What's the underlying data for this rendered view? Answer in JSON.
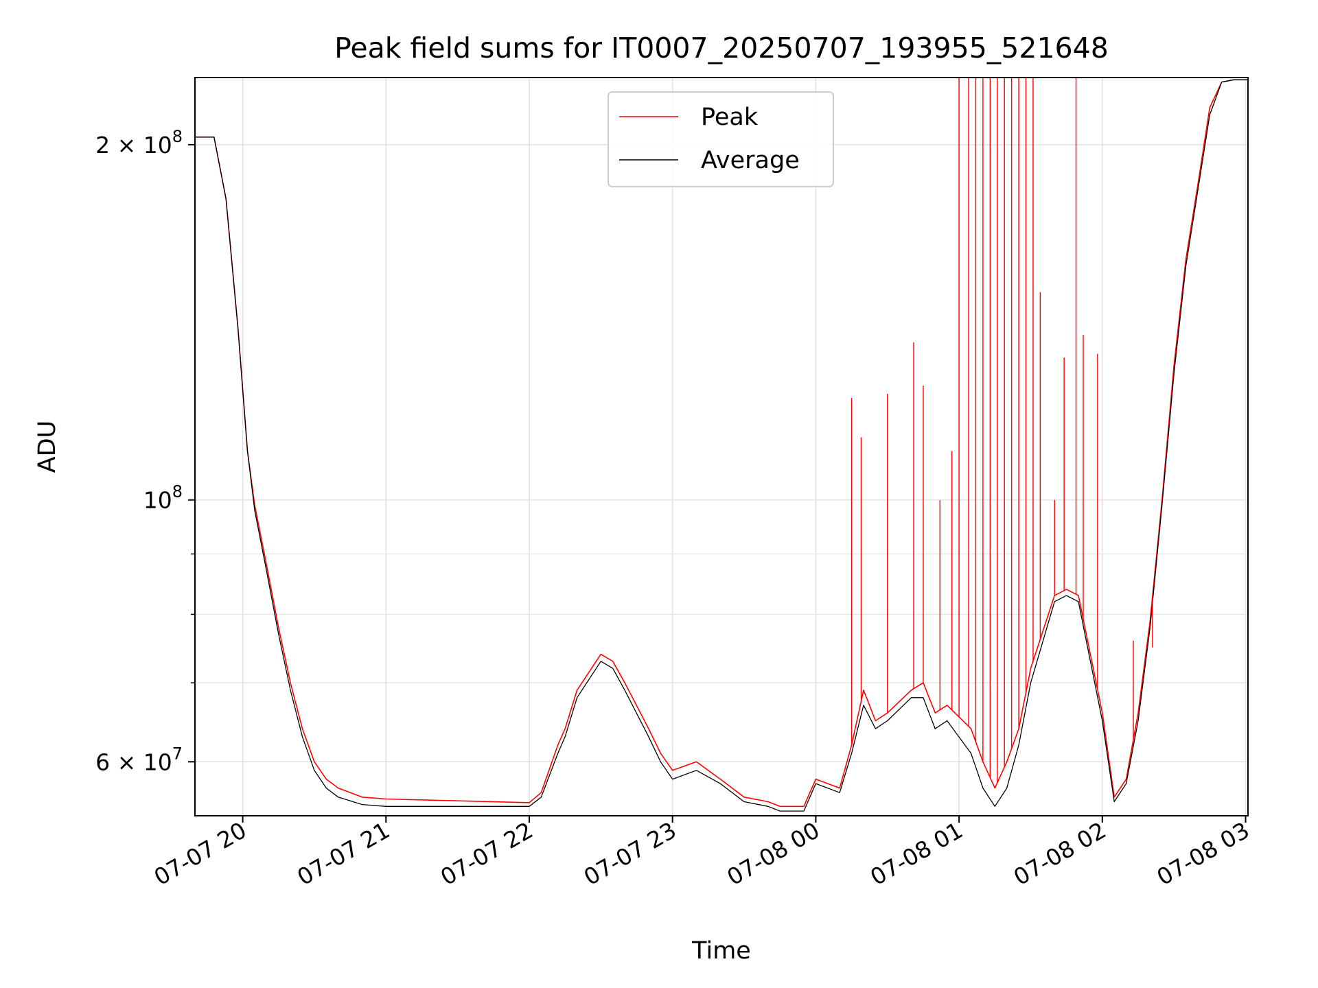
{
  "chart_data": {
    "type": "line",
    "title": "Peak field sums for IT0007_20250707_193955_521648",
    "xlabel": "Time",
    "ylabel": "ADU",
    "y_scale": "log",
    "grid": true,
    "legend_position": "top-center",
    "xlim": [
      "2025-07-07 19:40",
      "2025-07-08 03:01"
    ],
    "ylim": [
      54000000,
      228000000
    ],
    "x_ticks": [
      "07-07 20",
      "07-07 21",
      "07-07 22",
      "07-07 23",
      "07-08 00",
      "07-08 01",
      "07-08 02",
      "07-08 03"
    ],
    "y_ticks": [
      {
        "value": 200000000,
        "mantissa": "2",
        "exponent": "8"
      },
      {
        "value": 100000000,
        "mantissa": "",
        "exponent": "8"
      },
      {
        "value": 60000000,
        "mantissa": "6",
        "exponent": "7"
      }
    ],
    "y_minor_ticks": [
      70000000,
      80000000,
      90000000
    ],
    "series": [
      {
        "name": "Peak",
        "color": "#ff0000",
        "x": [
          "2025-07-07 19:40",
          "2025-07-07 19:48",
          "2025-07-07 19:53",
          "2025-07-07 19:58",
          "2025-07-07 20:02",
          "2025-07-07 20:05",
          "2025-07-07 20:10",
          "2025-07-07 20:15",
          "2025-07-07 20:20",
          "2025-07-07 20:25",
          "2025-07-07 20:30",
          "2025-07-07 20:35",
          "2025-07-07 20:40",
          "2025-07-07 20:50",
          "2025-07-07 21:00",
          "2025-07-07 21:30",
          "2025-07-07 22:00",
          "2025-07-07 22:05",
          "2025-07-07 22:12",
          "2025-07-07 22:15",
          "2025-07-07 22:20",
          "2025-07-07 22:30",
          "2025-07-07 22:35",
          "2025-07-07 22:40",
          "2025-07-07 22:50",
          "2025-07-07 22:55",
          "2025-07-07 23:00",
          "2025-07-07 23:10",
          "2025-07-07 23:20",
          "2025-07-07 23:30",
          "2025-07-07 23:40",
          "2025-07-07 23:45",
          "2025-07-07 23:55",
          "2025-07-08 00:00",
          "2025-07-08 00:10",
          "2025-07-08 00:15",
          "2025-07-08 00:20",
          "2025-07-08 00:25",
          "2025-07-08 00:30",
          "2025-07-08 00:40",
          "2025-07-08 00:45",
          "2025-07-08 00:50",
          "2025-07-08 00:55",
          "2025-07-08 01:05",
          "2025-07-08 01:10",
          "2025-07-08 01:15",
          "2025-07-08 01:20",
          "2025-07-08 01:25",
          "2025-07-08 01:30",
          "2025-07-08 01:40",
          "2025-07-08 01:45",
          "2025-07-08 01:50",
          "2025-07-08 01:55",
          "2025-07-08 02:00",
          "2025-07-08 02:05",
          "2025-07-08 02:10",
          "2025-07-08 02:15",
          "2025-07-08 02:20",
          "2025-07-08 02:25",
          "2025-07-08 02:30",
          "2025-07-08 02:35",
          "2025-07-08 02:40",
          "2025-07-08 02:45",
          "2025-07-08 02:50",
          "2025-07-08 02:55",
          "2025-07-08 03:01"
        ],
        "values": [
          203000000,
          203000000,
          180000000,
          140000000,
          110000000,
          99000000,
          88000000,
          78000000,
          70000000,
          64000000,
          60000000,
          58000000,
          57000000,
          56000000,
          55800000,
          55600000,
          55400000,
          56500000,
          62000000,
          64000000,
          69000000,
          74000000,
          73000000,
          70000000,
          64000000,
          61000000,
          59000000,
          60000000,
          58000000,
          56000000,
          55500000,
          55000000,
          55000000,
          58000000,
          57000000,
          62000000,
          69000000,
          65000000,
          66000000,
          69000000,
          70000000,
          66000000,
          67000000,
          64000000,
          60000000,
          57000000,
          60000000,
          64000000,
          72000000,
          83000000,
          84000000,
          83000000,
          74000000,
          66000000,
          56000000,
          58000000,
          66000000,
          79000000,
          100000000,
          130000000,
          160000000,
          185000000,
          215000000,
          226000000,
          227000000,
          227000000
        ],
        "spikes": [
          {
            "x": "2025-07-08 00:15",
            "value": 122000000
          },
          {
            "x": "2025-07-08 00:19",
            "value": 113000000
          },
          {
            "x": "2025-07-08 00:30",
            "value": 123000000
          },
          {
            "x": "2025-07-08 00:41",
            "value": 136000000
          },
          {
            "x": "2025-07-08 00:45",
            "value": 125000000
          },
          {
            "x": "2025-07-08 00:52",
            "value": 100000000
          },
          {
            "x": "2025-07-08 00:57",
            "value": 110000000
          },
          {
            "x": "2025-07-08 01:00",
            "value": 228000000
          },
          {
            "x": "2025-07-08 01:04",
            "value": 228000000
          },
          {
            "x": "2025-07-08 01:07",
            "value": 228000000
          },
          {
            "x": "2025-07-08 01:10",
            "value": 228000000
          },
          {
            "x": "2025-07-08 01:13",
            "value": 228000000
          },
          {
            "x": "2025-07-08 01:16",
            "value": 228000000
          },
          {
            "x": "2025-07-08 01:19",
            "value": 228000000
          },
          {
            "x": "2025-07-08 01:22",
            "value": 228000000
          },
          {
            "x": "2025-07-08 01:25",
            "value": 228000000
          },
          {
            "x": "2025-07-08 01:28",
            "value": 228000000
          },
          {
            "x": "2025-07-08 01:31",
            "value": 228000000
          },
          {
            "x": "2025-07-08 01:34",
            "value": 150000000
          },
          {
            "x": "2025-07-08 01:40",
            "value": 100000000
          },
          {
            "x": "2025-07-08 01:44",
            "value": 132000000
          },
          {
            "x": "2025-07-08 01:49",
            "value": 228000000
          },
          {
            "x": "2025-07-08 01:52",
            "value": 138000000
          },
          {
            "x": "2025-07-08 01:58",
            "value": 133000000
          },
          {
            "x": "2025-07-08 02:13",
            "value": 76000000
          },
          {
            "x": "2025-07-08 02:21",
            "value": 75000000
          }
        ]
      },
      {
        "name": "Average",
        "color": "#000000",
        "x": [
          "2025-07-07 19:40",
          "2025-07-07 19:48",
          "2025-07-07 19:53",
          "2025-07-07 19:58",
          "2025-07-07 20:02",
          "2025-07-07 20:05",
          "2025-07-07 20:10",
          "2025-07-07 20:15",
          "2025-07-07 20:20",
          "2025-07-07 20:25",
          "2025-07-07 20:30",
          "2025-07-07 20:35",
          "2025-07-07 20:40",
          "2025-07-07 20:50",
          "2025-07-07 21:00",
          "2025-07-07 21:30",
          "2025-07-07 22:00",
          "2025-07-07 22:05",
          "2025-07-07 22:12",
          "2025-07-07 22:15",
          "2025-07-07 22:20",
          "2025-07-07 22:30",
          "2025-07-07 22:35",
          "2025-07-07 22:40",
          "2025-07-07 22:50",
          "2025-07-07 22:55",
          "2025-07-07 23:00",
          "2025-07-07 23:10",
          "2025-07-07 23:20",
          "2025-07-07 23:30",
          "2025-07-07 23:40",
          "2025-07-07 23:45",
          "2025-07-07 23:55",
          "2025-07-08 00:00",
          "2025-07-08 00:10",
          "2025-07-08 00:15",
          "2025-07-08 00:20",
          "2025-07-08 00:25",
          "2025-07-08 00:30",
          "2025-07-08 00:40",
          "2025-07-08 00:45",
          "2025-07-08 00:50",
          "2025-07-08 00:55",
          "2025-07-08 01:05",
          "2025-07-08 01:10",
          "2025-07-08 01:15",
          "2025-07-08 01:20",
          "2025-07-08 01:25",
          "2025-07-08 01:30",
          "2025-07-08 01:40",
          "2025-07-08 01:45",
          "2025-07-08 01:50",
          "2025-07-08 01:55",
          "2025-07-08 02:00",
          "2025-07-08 02:05",
          "2025-07-08 02:10",
          "2025-07-08 02:15",
          "2025-07-08 02:20",
          "2025-07-08 02:25",
          "2025-07-08 02:30",
          "2025-07-08 02:35",
          "2025-07-08 02:40",
          "2025-07-08 02:45",
          "2025-07-08 02:50",
          "2025-07-08 02:55",
          "2025-07-08 03:01"
        ],
        "values": [
          203000000,
          203000000,
          180000000,
          140000000,
          110000000,
          98000000,
          87000000,
          77000000,
          69000000,
          63000000,
          59000000,
          57000000,
          56000000,
          55200000,
          55000000,
          55000000,
          55000000,
          56000000,
          61000000,
          63000000,
          68000000,
          73000000,
          72000000,
          69000000,
          63000000,
          60000000,
          58000000,
          59000000,
          57500000,
          55500000,
          55000000,
          54500000,
          54500000,
          57500000,
          56500000,
          61000000,
          67000000,
          64000000,
          65000000,
          68000000,
          68000000,
          64000000,
          65000000,
          61000000,
          57000000,
          55000000,
          57000000,
          62000000,
          70000000,
          82000000,
          83000000,
          82000000,
          73000000,
          65000000,
          55500000,
          57500000,
          65000000,
          78000000,
          99000000,
          128000000,
          158000000,
          183000000,
          212000000,
          226000000,
          227000000,
          227000000
        ]
      }
    ]
  }
}
